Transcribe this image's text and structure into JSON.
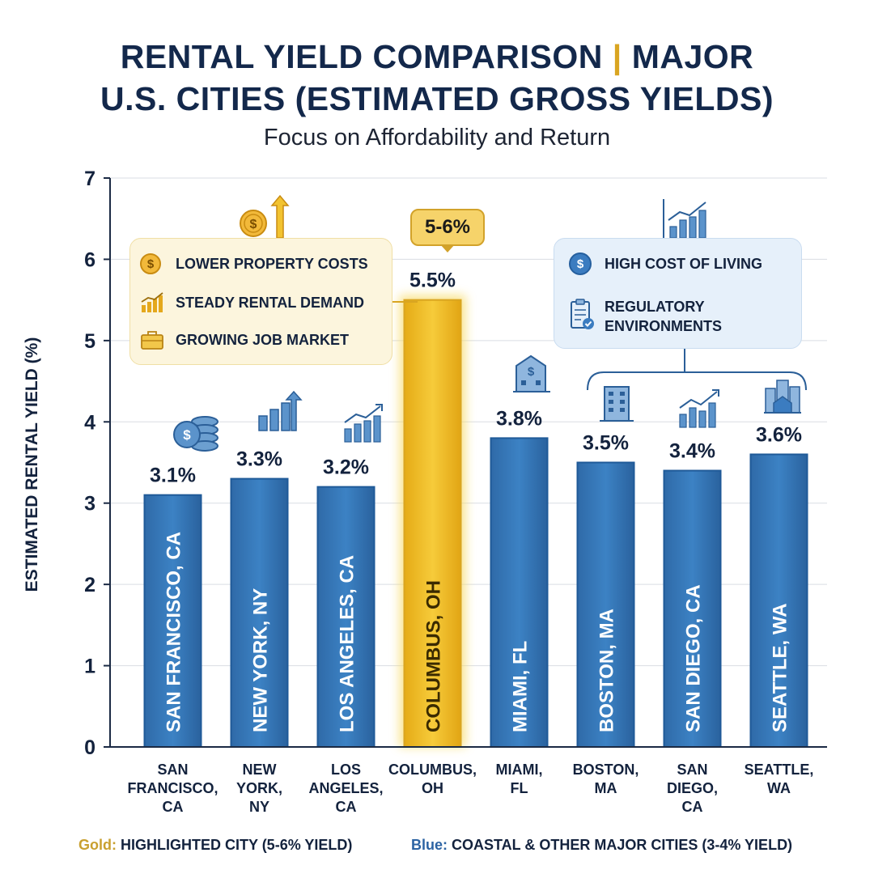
{
  "header": {
    "title_line1_a": "RENTAL YIELD COMPARISON",
    "title_separator": "|",
    "title_line1_b": "MAJOR",
    "title_line2": "U.S. CITIES (ESTIMATED GROSS YIELDS)",
    "subtitle": "Focus on Affordability and Return"
  },
  "chart_data": {
    "type": "bar",
    "title": "RENTAL YIELD COMPARISON | MAJOR U.S. CITIES (ESTIMATED GROSS YIELDS)",
    "subtitle": "Focus on Affordability and Return",
    "xlabel": "",
    "ylabel": "ESTIMATED RENTAL YIELD (%)",
    "ylim": [
      0,
      7
    ],
    "yticks": [
      0,
      1,
      2,
      3,
      4,
      5,
      6,
      7
    ],
    "grid": true,
    "categories": [
      "SAN FRANCISCO, CA",
      "NEW YORK, NY",
      "LOS ANGELES, CA",
      "COLUMBUS, OH",
      "MIAMI, FL",
      "BOSTON, MA",
      "SAN DIEGO, CA",
      "SEATTLE, WA"
    ],
    "tick_labels": [
      [
        "SAN",
        "FRANCISCO,",
        "CA"
      ],
      [
        "NEW",
        "YORK,",
        "NY"
      ],
      [
        "LOS",
        "ANGELES,",
        "CA"
      ],
      [
        "COLUMBUS,",
        "OH"
      ],
      [
        "MIAMI,",
        "FL"
      ],
      [
        "BOSTON,",
        "MA"
      ],
      [
        "SAN",
        "DIEGO,",
        "CA"
      ],
      [
        "SEATTLE,",
        "WA"
      ]
    ],
    "values": [
      3.1,
      3.3,
      3.2,
      5.5,
      3.8,
      3.5,
      3.4,
      3.6
    ],
    "value_labels": [
      "3.1%",
      "3.3%",
      "3.2%",
      "5.5%",
      "3.8%",
      "3.5%",
      "3.4%",
      "3.6%"
    ],
    "highlight": [
      false,
      false,
      false,
      true,
      false,
      false,
      false,
      false
    ],
    "colors": {
      "gold": "#f2c330",
      "gold_edge": "#d9a521",
      "blue": "#3475b6",
      "blue_dark": "#1f5a98"
    }
  },
  "annotations": {
    "gold_callout": "5-6%",
    "gold_reasons": [
      {
        "icon": "dollar-coin-icon",
        "label": "LOWER PROPERTY COSTS"
      },
      {
        "icon": "rising-bars-icon",
        "label": "STEADY RENTAL DEMAND"
      },
      {
        "icon": "briefcase-icon",
        "label": "GROWING JOB MARKET"
      }
    ],
    "blue_reasons": [
      {
        "icon": "dollar-coin-icon",
        "label": "HIGH COST OF LIVING"
      },
      {
        "icon": "clipboard-check-icon",
        "label": "REGULATORY",
        "label2": "ENVIRONMENTS"
      }
    ]
  },
  "legend": {
    "gold_key": "Gold:",
    "gold_text": "HIGHLIGHTED CITY (5-6% YIELD)",
    "blue_key": "Blue:",
    "blue_text": "COASTAL & OTHER MAJOR CITIES (3-4% YIELD)"
  }
}
